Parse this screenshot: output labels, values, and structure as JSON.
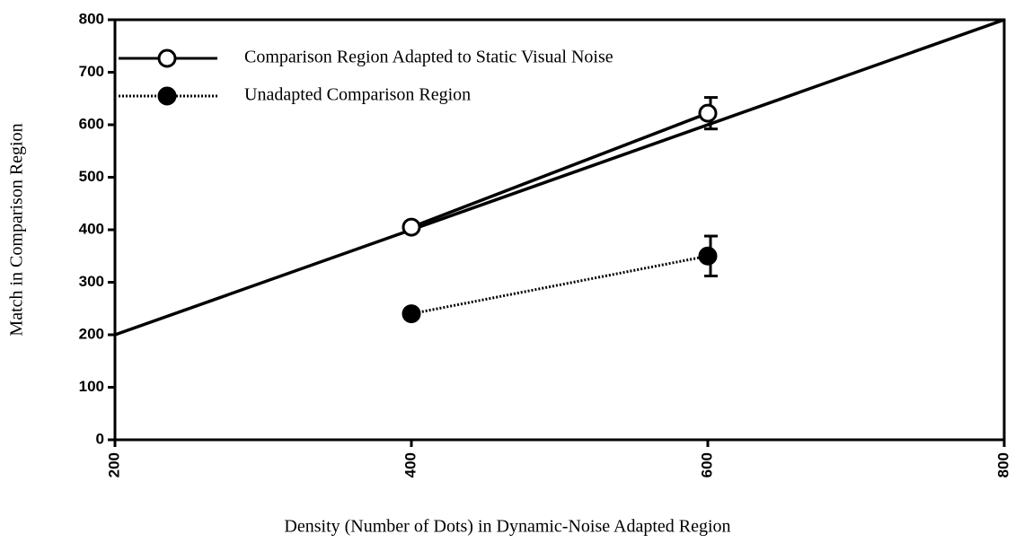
{
  "chart_data": {
    "type": "line",
    "xlabel": "Density (Number of Dots) in Dynamic-Noise Adapted Region",
    "ylabel": "Match in Comparison Region",
    "xlim": [
      200,
      800
    ],
    "xticks": [
      200,
      400,
      600,
      800
    ],
    "ylim": [
      0,
      800
    ],
    "yticks": [
      0,
      100,
      200,
      300,
      400,
      500,
      600,
      700,
      800
    ],
    "legend": "upper left",
    "identity_line": {
      "x": [
        200,
        800
      ],
      "values": [
        200,
        800
      ],
      "color": "#000000"
    },
    "series": [
      {
        "name": "Comparison Region Adapted to Static Visual Noise",
        "color": "#000000",
        "style": "solid",
        "marker": "open",
        "x": [
          400,
          600
        ],
        "values": [
          405,
          622
        ],
        "errors": [
          null,
          30
        ]
      },
      {
        "name": "Unadapted Comparison Region",
        "color": "#000000",
        "style": "dotted",
        "marker": "filled",
        "x": [
          400,
          600
        ],
        "values": [
          240,
          350
        ],
        "errors": [
          null,
          38
        ]
      }
    ]
  }
}
